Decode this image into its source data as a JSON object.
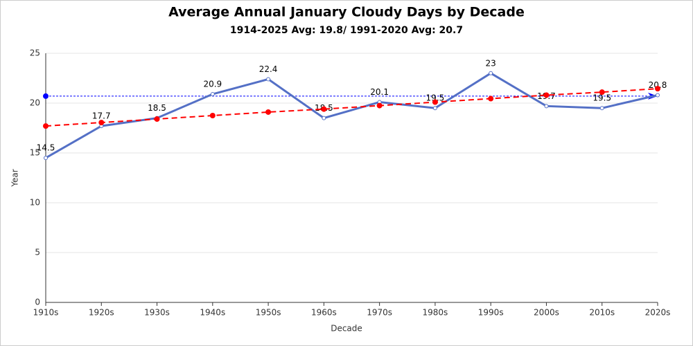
{
  "chart_data": {
    "type": "line",
    "title": "Average Annual January Cloudy Days by Decade",
    "subtitle": "1914-2025 Avg: 19.8/ 1991-2020 Avg: 20.7",
    "x_label": "Decade",
    "y_label": "Year",
    "categories": [
      "1910s",
      "1920s",
      "1930s",
      "1940s",
      "1950s",
      "1960s",
      "1970s",
      "1980s",
      "1990s",
      "2000s",
      "2010s",
      "2020s"
    ],
    "series": [
      {
        "color": "#5470c6",
        "values": [
          14.5,
          17.7,
          18.5,
          20.9,
          22.4,
          18.5,
          20.1,
          19.5,
          23,
          19.7,
          19.5,
          20.8
        ],
        "labels": true
      },
      {
        "color": "#ff0000",
        "dashed": true,
        "values": [
          17.7,
          18.05,
          18.4,
          18.75,
          19.1,
          19.4,
          19.75,
          20.1,
          20.45,
          20.8,
          21.1,
          21.45
        ]
      }
    ],
    "reference_line": {
      "value": 20.7,
      "color": "#0000ff"
    },
    "ylim": [
      0,
      25
    ],
    "yticks": [
      0,
      5,
      10,
      15,
      20,
      25
    ],
    "grid": true
  }
}
